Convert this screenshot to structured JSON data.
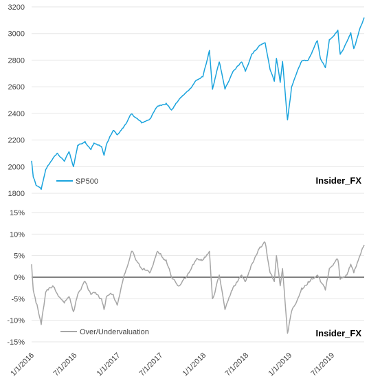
{
  "watermark": "Insider_FX",
  "chart_data": [
    {
      "type": "line",
      "ylim": [
        1800,
        3200
      ],
      "yticks": [
        1800,
        2000,
        2200,
        2400,
        2600,
        2800,
        3000,
        3200
      ],
      "xlim": [
        "2016-01-01",
        "2019-11-15"
      ],
      "grid": true,
      "legend": "bottom-left",
      "series": [
        {
          "name": "SP500",
          "color": "#1aa3dd",
          "points": [
            [
              "2016-01-01",
              2044
            ],
            [
              "2016-01-08",
              1922
            ],
            [
              "2016-01-20",
              1860
            ],
            [
              "2016-02-11",
              1829
            ],
            [
              "2016-03-01",
              1978
            ],
            [
              "2016-03-31",
              2060
            ],
            [
              "2016-04-20",
              2100
            ],
            [
              "2016-05-19",
              2040
            ],
            [
              "2016-06-08",
              2112
            ],
            [
              "2016-06-27",
              2000
            ],
            [
              "2016-07-15",
              2160
            ],
            [
              "2016-08-15",
              2190
            ],
            [
              "2016-09-09",
              2128
            ],
            [
              "2016-09-22",
              2177
            ],
            [
              "2016-10-24",
              2151
            ],
            [
              "2016-11-04",
              2085
            ],
            [
              "2016-11-14",
              2165
            ],
            [
              "2016-12-13",
              2272
            ],
            [
              "2016-12-30",
              2239
            ],
            [
              "2017-01-26",
              2296
            ],
            [
              "2017-03-01",
              2396
            ],
            [
              "2017-04-13",
              2328
            ],
            [
              "2017-05-17",
              2357
            ],
            [
              "2017-06-19",
              2453
            ],
            [
              "2017-07-26",
              2477
            ],
            [
              "2017-08-18",
              2425
            ],
            [
              "2017-09-20",
              2508
            ],
            [
              "2017-10-31",
              2575
            ],
            [
              "2017-11-30",
              2648
            ],
            [
              "2017-12-29",
              2674
            ],
            [
              "2018-01-26",
              2873
            ],
            [
              "2018-02-08",
              2581
            ],
            [
              "2018-03-09",
              2786
            ],
            [
              "2018-04-02",
              2582
            ],
            [
              "2018-05-10",
              2723
            ],
            [
              "2018-06-12",
              2786
            ],
            [
              "2018-06-28",
              2716
            ],
            [
              "2018-07-25",
              2846
            ],
            [
              "2018-08-29",
              2914
            ],
            [
              "2018-09-20",
              2930
            ],
            [
              "2018-10-11",
              2728
            ],
            [
              "2018-10-29",
              2641
            ],
            [
              "2018-11-07",
              2813
            ],
            [
              "2018-11-23",
              2633
            ],
            [
              "2018-12-03",
              2790
            ],
            [
              "2018-12-24",
              2351
            ],
            [
              "2019-01-10",
              2596
            ],
            [
              "2019-02-22",
              2792
            ],
            [
              "2019-03-22",
              2800
            ],
            [
              "2019-04-30",
              2946
            ],
            [
              "2019-05-13",
              2812
            ],
            [
              "2019-06-03",
              2744
            ],
            [
              "2019-06-20",
              2954
            ],
            [
              "2019-07-26",
              3025
            ],
            [
              "2019-08-05",
              2844
            ],
            [
              "2019-08-30",
              2926
            ],
            [
              "2019-09-19",
              3006
            ],
            [
              "2019-10-02",
              2887
            ],
            [
              "2019-10-28",
              3039
            ],
            [
              "2019-11-15",
              3120
            ]
          ]
        }
      ]
    },
    {
      "type": "line",
      "ylim": [
        -15,
        15
      ],
      "yticks": [
        -15,
        -10,
        -5,
        0,
        5,
        10,
        15
      ],
      "ytick_labels": [
        "-15%",
        "-10%",
        "-5%",
        "0%",
        "5%",
        "10%",
        "15%"
      ],
      "xlim": [
        "2016-01-01",
        "2019-11-15"
      ],
      "xtick_labels": [
        "1/1/2016",
        "7/1/2016",
        "1/1/2017",
        "7/1/2017",
        "1/1/2018",
        "7/1/2018",
        "1/1/2019",
        "7/1/2019"
      ],
      "zero_line": true,
      "grid": true,
      "legend": "bottom-left",
      "series": [
        {
          "name": "Over/Undervaluation",
          "color": "#a6a6a6",
          "points": [
            [
              "2016-01-01",
              3
            ],
            [
              "2016-01-08",
              -3
            ],
            [
              "2016-01-20",
              -6
            ],
            [
              "2016-02-11",
              -11
            ],
            [
              "2016-03-01",
              -3.5
            ],
            [
              "2016-03-31",
              -2
            ],
            [
              "2016-04-20",
              -4
            ],
            [
              "2016-05-19",
              -6
            ],
            [
              "2016-06-08",
              -4.5
            ],
            [
              "2016-06-27",
              -8
            ],
            [
              "2016-07-15",
              -4
            ],
            [
              "2016-08-15",
              -1
            ],
            [
              "2016-09-09",
              -4
            ],
            [
              "2016-09-22",
              -3.5
            ],
            [
              "2016-10-24",
              -5
            ],
            [
              "2016-11-04",
              -7.5
            ],
            [
              "2016-11-14",
              -4.5
            ],
            [
              "2016-12-13",
              -4
            ],
            [
              "2016-12-30",
              -6.5
            ],
            [
              "2017-01-26",
              0
            ],
            [
              "2017-03-01",
              6
            ],
            [
              "2017-04-13",
              2
            ],
            [
              "2017-05-17",
              1
            ],
            [
              "2017-06-19",
              6
            ],
            [
              "2017-07-26",
              4
            ],
            [
              "2017-08-18",
              0
            ],
            [
              "2017-09-20",
              -2
            ],
            [
              "2017-10-31",
              1
            ],
            [
              "2017-11-30",
              4
            ],
            [
              "2017-12-29",
              4
            ],
            [
              "2018-01-26",
              6
            ],
            [
              "2018-02-08",
              -5
            ],
            [
              "2018-03-09",
              0.5
            ],
            [
              "2018-04-02",
              -7.5
            ],
            [
              "2018-05-10",
              -2
            ],
            [
              "2018-06-12",
              0.5
            ],
            [
              "2018-06-28",
              -1
            ],
            [
              "2018-07-25",
              3
            ],
            [
              "2018-08-29",
              7
            ],
            [
              "2018-09-20",
              8
            ],
            [
              "2018-10-11",
              1
            ],
            [
              "2018-10-29",
              -1
            ],
            [
              "2018-11-07",
              5
            ],
            [
              "2018-11-23",
              -2
            ],
            [
              "2018-12-03",
              2
            ],
            [
              "2018-12-24",
              -13
            ],
            [
              "2019-01-10",
              -8
            ],
            [
              "2019-02-22",
              -2.5
            ],
            [
              "2019-03-22",
              -1
            ],
            [
              "2019-04-30",
              0.5
            ],
            [
              "2019-05-13",
              -1
            ],
            [
              "2019-06-03",
              -3
            ],
            [
              "2019-06-20",
              2
            ],
            [
              "2019-07-26",
              4
            ],
            [
              "2019-08-05",
              -0.5
            ],
            [
              "2019-08-30",
              0.5
            ],
            [
              "2019-09-19",
              3
            ],
            [
              "2019-10-02",
              1
            ],
            [
              "2019-10-28",
              5
            ],
            [
              "2019-11-15",
              7.5
            ]
          ]
        }
      ]
    }
  ]
}
